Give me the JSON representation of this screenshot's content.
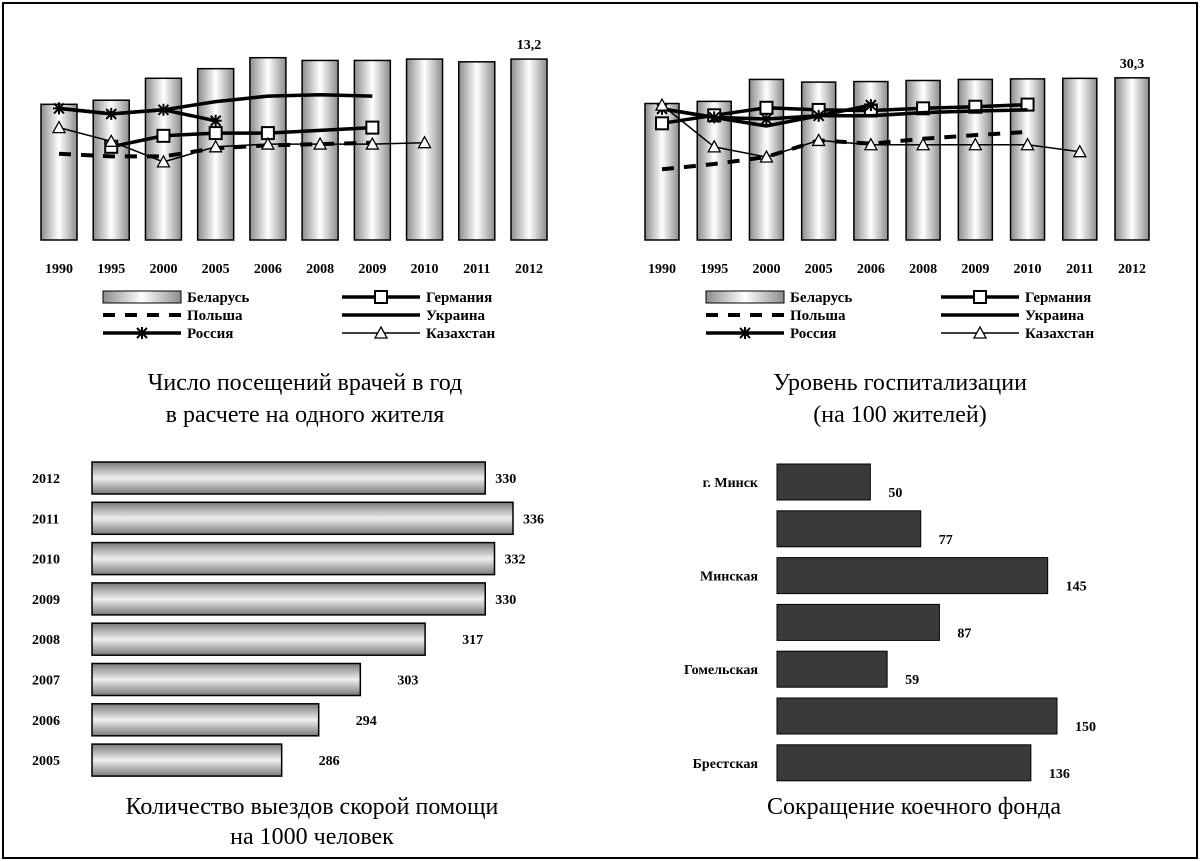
{
  "legend": {
    "labels": [
      "Беларусь",
      "Германия",
      "Польша",
      "Украина",
      "Россия",
      "Казахстан"
    ]
  },
  "chart_data": [
    {
      "type": "bar",
      "caption": [
        "Число посещений врачей в год",
        "в расчете на одного жителя"
      ],
      "categories": [
        "1990",
        "1995",
        "2000",
        "2005",
        "2006",
        "2008",
        "2009",
        "2010",
        "2011",
        "2012"
      ],
      "series": [
        {
          "name": "Беларусь",
          "kind": "bar",
          "values": [
            9.9,
            10.2,
            11.8,
            12.5,
            13.3,
            13.1,
            13.1,
            13.2,
            13.0,
            13.2
          ]
        },
        {
          "name": "Германия",
          "kind": "line",
          "marker": "square",
          "values": [
            null,
            6.8,
            7.6,
            7.8,
            7.8,
            null,
            8.2,
            null,
            null,
            null
          ]
        },
        {
          "name": "Польша",
          "kind": "line",
          "dash": true,
          "values": [
            6.3,
            6.1,
            6.1,
            6.7,
            6.9,
            7.0,
            7.1,
            null,
            null,
            null
          ]
        },
        {
          "name": "Украина",
          "kind": "line",
          "values": [
            9.6,
            9.2,
            9.5,
            10.1,
            10.5,
            10.6,
            10.5,
            null,
            null,
            null
          ]
        },
        {
          "name": "Россия",
          "kind": "line",
          "marker": "asterisk",
          "values": [
            9.6,
            9.2,
            9.5,
            8.7,
            null,
            null,
            null,
            null,
            null,
            null
          ]
        },
        {
          "name": "Казахстан",
          "kind": "line",
          "marker": "triangle",
          "values": [
            8.2,
            7.2,
            5.7,
            6.8,
            7.0,
            7.0,
            7.0,
            7.1,
            null,
            null
          ]
        }
      ],
      "annotation": {
        "category": "2012",
        "text": "13,2"
      },
      "ylim": [
        0,
        14.3
      ]
    },
    {
      "type": "bar",
      "caption": [
        "Уровень госпитализации",
        "(на 100 жителей)"
      ],
      "categories": [
        "1990",
        "1995",
        "2000",
        "2005",
        "2006",
        "2008",
        "2009",
        "2010",
        "2011",
        "2012"
      ],
      "series": [
        {
          "name": "Беларусь",
          "kind": "bar",
          "values": [
            25.5,
            25.9,
            30.0,
            29.5,
            29.6,
            29.8,
            30.0,
            30.1,
            30.2,
            30.3
          ]
        },
        {
          "name": "Германия",
          "kind": "line",
          "marker": "square",
          "values": [
            21.8,
            23.3,
            24.7,
            24.3,
            24.2,
            24.6,
            24.9,
            25.3,
            null,
            null
          ]
        },
        {
          "name": "Польша",
          "kind": "line",
          "dash": true,
          "values": [
            13.2,
            14.2,
            15.5,
            18.6,
            18.0,
            18.9,
            19.6,
            20.2,
            null,
            null
          ]
        },
        {
          "name": "Украина",
          "kind": "line",
          "values": [
            24.5,
            22.9,
            21.3,
            23.2,
            23.2,
            23.8,
            24.1,
            24.3,
            null,
            null
          ]
        },
        {
          "name": "Россия",
          "kind": "line",
          "marker": "asterisk",
          "values": [
            24.5,
            22.9,
            22.6,
            23.2,
            25.2,
            null,
            null,
            null,
            null,
            null
          ]
        },
        {
          "name": "Казахстан",
          "kind": "line",
          "marker": "triangle",
          "values": [
            25.2,
            17.4,
            15.5,
            18.6,
            17.8,
            17.8,
            17.8,
            17.8,
            16.5,
            null
          ]
        }
      ],
      "annotation": {
        "category": "2012",
        "text": "30,3"
      },
      "ylim": [
        0,
        31.2
      ]
    },
    {
      "type": "bar",
      "orientation": "horizontal",
      "caption": [
        "Количество выездов скорой помощи",
        "на 1000 человек"
      ],
      "categories": [
        "2012",
        "2011",
        "2010",
        "2009",
        "2008",
        "2007",
        "2006",
        "2005"
      ],
      "values": [
        330,
        336,
        332,
        330,
        317,
        303,
        294,
        286
      ],
      "xlim": [
        245,
        336
      ]
    },
    {
      "type": "bar",
      "orientation": "horizontal",
      "caption": [
        "Сокращение коечного фонда"
      ],
      "categories": [
        "г. Минск",
        "",
        "Минская",
        "",
        "Гомельская",
        "",
        "Брестская"
      ],
      "values": [
        50,
        77,
        145,
        87,
        59,
        150,
        136
      ],
      "xlim": [
        0,
        150
      ]
    }
  ]
}
